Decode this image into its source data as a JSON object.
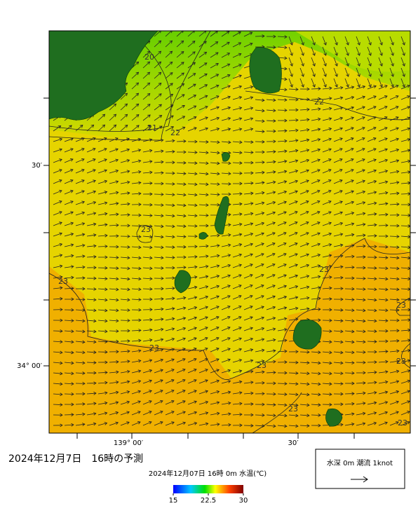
{
  "map": {
    "contour_labels": [
      "20",
      "21",
      "22",
      "22",
      "23",
      "23",
      "23",
      "23",
      "23",
      "23",
      "23",
      "23",
      "23"
    ],
    "lat_labels": [
      "30′",
      "34° 00′"
    ],
    "lon_labels": [
      "139° 00′",
      "30′"
    ]
  },
  "caption": "2024年12月7日　16時の予測",
  "colorbar": {
    "title": "2024年12月07日 16時 0m 水温(℃)",
    "lim": [
      15,
      30
    ],
    "ticks": [
      15,
      22.5,
      30
    ]
  },
  "legend": {
    "label": "水深 0m 潮流 1knot"
  }
}
